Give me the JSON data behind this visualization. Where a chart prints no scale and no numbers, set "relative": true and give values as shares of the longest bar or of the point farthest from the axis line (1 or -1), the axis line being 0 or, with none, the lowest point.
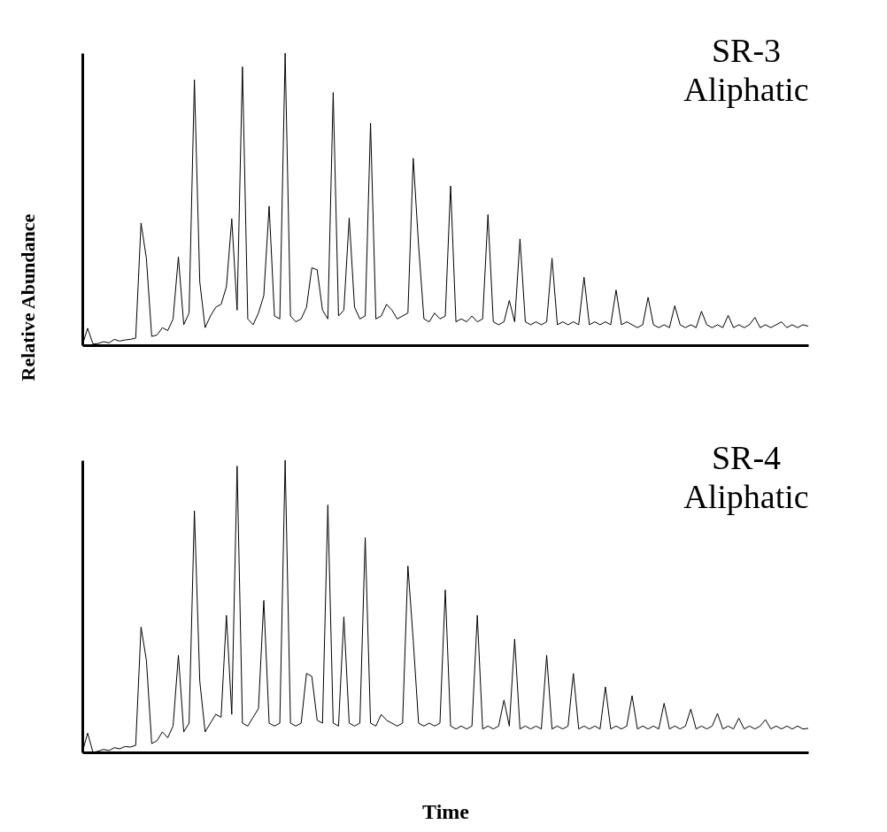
{
  "chart_data": [
    {
      "type": "line",
      "relative": true,
      "ylabel": "Relative Abundance",
      "annotations": [
        "SR-3",
        "Aliphatic"
      ],
      "grid": false,
      "legend": false,
      "tick_labels": false,
      "categories": [
        null,
        null,
        null,
        null,
        null,
        null,
        null,
        null,
        null,
        null,
        null,
        null,
        null,
        null,
        null,
        null,
        null,
        null,
        null,
        null,
        null,
        null,
        null,
        null,
        null,
        null,
        null,
        null,
        null,
        null,
        null,
        null,
        null,
        null,
        null,
        null,
        null,
        null,
        null,
        null,
        null,
        null,
        null,
        null,
        null,
        null,
        null,
        null,
        null,
        null,
        null,
        null,
        null,
        null,
        null,
        null,
        null,
        null,
        null,
        null,
        null,
        null,
        null,
        null,
        null,
        null,
        null,
        null,
        null,
        null,
        null,
        null,
        null,
        null,
        null,
        null,
        null,
        null,
        null,
        null,
        null,
        null,
        null,
        null,
        null,
        null,
        null,
        null,
        null,
        null,
        null,
        null,
        null,
        null,
        null,
        null,
        null,
        null,
        null,
        null,
        null,
        null,
        null,
        null,
        null,
        null,
        null,
        null,
        null,
        null,
        null,
        null,
        null,
        null,
        null,
        null,
        null,
        null,
        null,
        null,
        null,
        null,
        null,
        null,
        null,
        null,
        null,
        null,
        null,
        null,
        null,
        null,
        null,
        null,
        null,
        null,
        null
      ],
      "series": [
        {
          "color": "#000000",
          "values": [
            0.0,
            0.058,
            0.004,
            0.006,
            0.012,
            0.008,
            0.02,
            0.014,
            0.018,
            0.02,
            0.024,
            0.418,
            0.298,
            0.03,
            0.035,
            0.06,
            0.05,
            0.09,
            0.302,
            0.07,
            0.11,
            0.909,
            0.218,
            0.06,
            0.1,
            0.13,
            0.14,
            0.2,
            0.433,
            0.12,
            0.953,
            0.09,
            0.07,
            0.11,
            0.17,
            0.476,
            0.1,
            0.09,
            1.0,
            0.1,
            0.08,
            0.09,
            0.13,
            0.265,
            0.258,
            0.12,
            0.09,
            0.865,
            0.1,
            0.12,
            0.436,
            0.13,
            0.09,
            0.1,
            0.76,
            0.09,
            0.1,
            0.14,
            0.12,
            0.09,
            0.1,
            0.11,
            0.64,
            0.342,
            0.09,
            0.08,
            0.11,
            0.09,
            0.1,
            0.545,
            0.08,
            0.09,
            0.08,
            0.1,
            0.08,
            0.09,
            0.447,
            0.08,
            0.07,
            0.08,
            0.153,
            0.08,
            0.364,
            0.08,
            0.07,
            0.08,
            0.07,
            0.08,
            0.298,
            0.07,
            0.08,
            0.07,
            0.08,
            0.07,
            0.233,
            0.07,
            0.08,
            0.07,
            0.08,
            0.07,
            0.189,
            0.07,
            0.08,
            0.07,
            0.06,
            0.07,
            0.164,
            0.07,
            0.06,
            0.07,
            0.06,
            0.135,
            0.07,
            0.06,
            0.07,
            0.06,
            0.116,
            0.07,
            0.06,
            0.07,
            0.06,
            0.102,
            0.06,
            0.07,
            0.06,
            0.07,
            0.095,
            0.06,
            0.07,
            0.06,
            0.07,
            0.08,
            0.06,
            0.07,
            0.06,
            0.07,
            0.065
          ]
        }
      ]
    },
    {
      "type": "line",
      "relative": true,
      "xlabel": "Time",
      "annotations": [
        "SR-4",
        "Aliphatic"
      ],
      "grid": false,
      "legend": false,
      "tick_labels": false,
      "categories": [
        null,
        null,
        null,
        null,
        null,
        null,
        null,
        null,
        null,
        null,
        null,
        null,
        null,
        null,
        null,
        null,
        null,
        null,
        null,
        null,
        null,
        null,
        null,
        null,
        null,
        null,
        null,
        null,
        null,
        null,
        null,
        null,
        null,
        null,
        null,
        null,
        null,
        null,
        null,
        null,
        null,
        null,
        null,
        null,
        null,
        null,
        null,
        null,
        null,
        null,
        null,
        null,
        null,
        null,
        null,
        null,
        null,
        null,
        null,
        null,
        null,
        null,
        null,
        null,
        null,
        null,
        null,
        null,
        null,
        null,
        null,
        null,
        null,
        null,
        null,
        null,
        null,
        null,
        null,
        null,
        null,
        null,
        null,
        null,
        null,
        null,
        null,
        null,
        null,
        null,
        null,
        null,
        null,
        null,
        null,
        null,
        null,
        null,
        null,
        null,
        null,
        null,
        null,
        null,
        null,
        null,
        null,
        null,
        null,
        null,
        null,
        null,
        null,
        null,
        null,
        null,
        null,
        null,
        null,
        null,
        null,
        null,
        null,
        null,
        null,
        null,
        null,
        null,
        null,
        null,
        null,
        null,
        null,
        null,
        null,
        null,
        null
      ],
      "series": [
        {
          "color": "#000000",
          "values": [
            0.0,
            0.066,
            0.0,
            0.004,
            0.01,
            0.006,
            0.016,
            0.012,
            0.02,
            0.018,
            0.024,
            0.429,
            0.316,
            0.03,
            0.04,
            0.07,
            0.05,
            0.09,
            0.332,
            0.07,
            0.1,
            0.827,
            0.245,
            0.07,
            0.1,
            0.13,
            0.12,
            0.469,
            0.13,
            0.98,
            0.1,
            0.09,
            0.12,
            0.15,
            0.52,
            0.1,
            0.09,
            0.1,
            1.0,
            0.1,
            0.09,
            0.1,
            0.27,
            0.26,
            0.11,
            0.1,
            0.847,
            0.1,
            0.09,
            0.464,
            0.1,
            0.09,
            0.1,
            0.735,
            0.1,
            0.09,
            0.13,
            0.11,
            0.1,
            0.09,
            0.1,
            0.638,
            0.383,
            0.1,
            0.09,
            0.1,
            0.09,
            0.1,
            0.556,
            0.09,
            0.08,
            0.09,
            0.08,
            0.09,
            0.469,
            0.08,
            0.09,
            0.08,
            0.09,
            0.179,
            0.09,
            0.388,
            0.08,
            0.09,
            0.08,
            0.09,
            0.08,
            0.332,
            0.08,
            0.09,
            0.08,
            0.09,
            0.27,
            0.08,
            0.09,
            0.08,
            0.09,
            0.08,
            0.224,
            0.08,
            0.09,
            0.08,
            0.09,
            0.194,
            0.08,
            0.09,
            0.08,
            0.09,
            0.08,
            0.168,
            0.08,
            0.09,
            0.08,
            0.09,
            0.148,
            0.08,
            0.09,
            0.08,
            0.09,
            0.133,
            0.08,
            0.09,
            0.08,
            0.117,
            0.08,
            0.09,
            0.08,
            0.09,
            0.112,
            0.08,
            0.09,
            0.08,
            0.09,
            0.08,
            0.09,
            0.08,
            0.082
          ]
        }
      ]
    }
  ]
}
